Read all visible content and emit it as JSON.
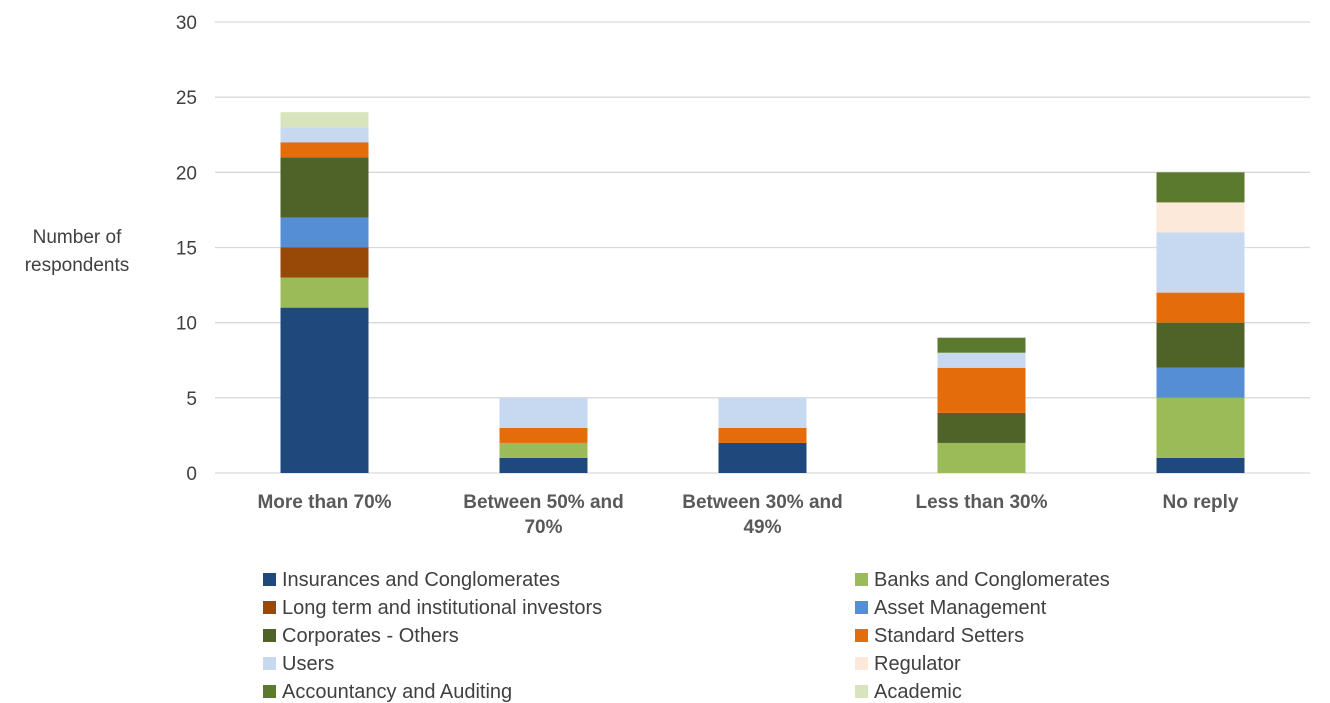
{
  "chart_data": {
    "type": "bar",
    "stacked": true,
    "title": "",
    "xlabel": "",
    "ylabel": "Number of respondents",
    "ylim": [
      0,
      30
    ],
    "yticks": [
      0,
      5,
      10,
      15,
      20,
      25,
      30
    ],
    "grid": true,
    "legend_position": "bottom",
    "categories": [
      "More than 70%",
      "Between 50% and 70%",
      "Between 30% and 49%",
      "Less than 30%",
      "No reply"
    ],
    "series": [
      {
        "name": "Insurances and Conglomerates",
        "color": "#1f497d",
        "values": [
          11,
          1,
          2,
          0,
          1
        ]
      },
      {
        "name": "Banks and Conglomerates",
        "color": "#9bbb59",
        "values": [
          2,
          1,
          0,
          2,
          4
        ]
      },
      {
        "name": "Long term and institutional investors",
        "color": "#984807",
        "values": [
          2,
          0,
          0,
          0,
          0
        ]
      },
      {
        "name": "Asset Management",
        "color": "#558ed5",
        "values": [
          2,
          0,
          0,
          0,
          2
        ]
      },
      {
        "name": "Corporates - Others",
        "color": "#4f6228",
        "values": [
          4,
          0,
          0,
          2,
          3
        ]
      },
      {
        "name": "Standard Setters",
        "color": "#e46c0a",
        "values": [
          1,
          1,
          1,
          3,
          2
        ]
      },
      {
        "name": "Users",
        "color": "#c6d9f1",
        "values": [
          1,
          2,
          2,
          1,
          4
        ]
      },
      {
        "name": "Regulator",
        "color": "#fde9d9",
        "values": [
          0,
          0,
          0,
          0,
          2
        ]
      },
      {
        "name": "Accountancy and Auditing",
        "color": "#5c7a2e",
        "values": [
          0,
          0,
          0,
          1,
          2
        ]
      },
      {
        "name": "Academic",
        "color": "#d7e4bd",
        "values": [
          1,
          0,
          0,
          0,
          0
        ]
      }
    ]
  }
}
